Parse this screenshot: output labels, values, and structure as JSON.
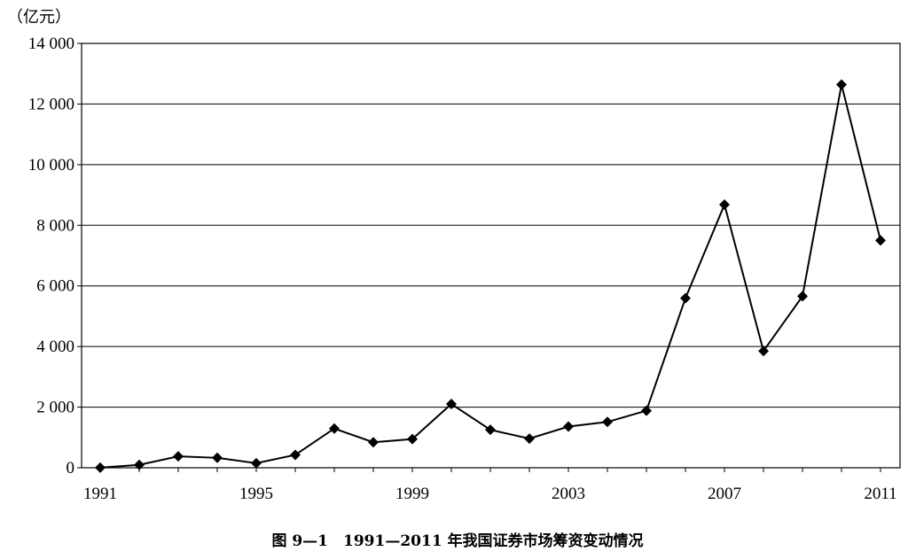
{
  "chart_data": {
    "type": "line",
    "title": "图 9—1　1991—2011 年我国证券市场筹资变动情况",
    "ylabel": "（亿元）",
    "xlabel": "",
    "xlim": [
      1991,
      2011
    ],
    "ylim": [
      0,
      14000
    ],
    "yticks": [
      0,
      2000,
      4000,
      6000,
      8000,
      10000,
      12000,
      14000
    ],
    "ytick_labels": [
      "0",
      "2 000",
      "4 000",
      "6 000",
      "8 000",
      "10 000",
      "12 000",
      "14 000"
    ],
    "xticks": [
      1991,
      1995,
      1999,
      2003,
      2007,
      2011
    ],
    "xtick_labels": [
      "1991",
      "1995",
      "1999",
      "2003",
      "2007",
      "2011"
    ],
    "grid": "horizontal",
    "marker": "diamond",
    "color": "#000000",
    "x": [
      1991,
      1992,
      1993,
      1994,
      1995,
      1996,
      1997,
      1998,
      1999,
      2000,
      2001,
      2002,
      2003,
      2004,
      2005,
      2006,
      2007,
      2008,
      2009,
      2010,
      2011
    ],
    "values": [
      5,
      94,
      375,
      327,
      150,
      425,
      1294,
      842,
      945,
      2103,
      1252,
      962,
      1358,
      1511,
      1883,
      5594,
      8680,
      3852,
      5660,
      12640,
      7500
    ]
  }
}
